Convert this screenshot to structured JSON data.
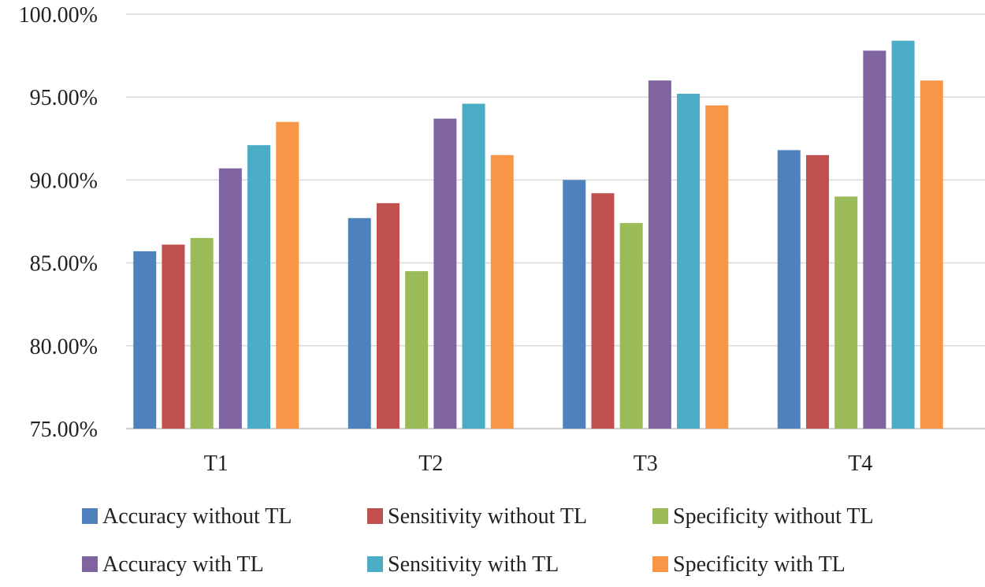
{
  "chart_data": {
    "type": "bar",
    "title": "",
    "xlabel": "",
    "ylabel": "",
    "categories": [
      "T1",
      "T2",
      "T3",
      "T4"
    ],
    "ylim": [
      0.75,
      1.0
    ],
    "ytick_step": 0.05,
    "ytick_format": "percent_2dp",
    "grid": true,
    "legend_position": "bottom",
    "legend_rows": [
      [
        "Accuracy without TL",
        "Sensitivity without TL",
        "Specificity without TL"
      ],
      [
        "Accuracy with TL",
        "Sensitivity with TL",
        "Specificity with TL"
      ]
    ],
    "series": [
      {
        "name": "Accuracy without TL",
        "color": "#4f81bd",
        "values": [
          0.857,
          0.877,
          0.9,
          0.918
        ]
      },
      {
        "name": "Sensitivity without TL",
        "color": "#c0504d",
        "values": [
          0.861,
          0.886,
          0.892,
          0.915
        ]
      },
      {
        "name": "Specificity without TL",
        "color": "#9bbb59",
        "values": [
          0.865,
          0.845,
          0.874,
          0.89
        ]
      },
      {
        "name": "Accuracy with TL",
        "color": "#8064a2",
        "values": [
          0.907,
          0.937,
          0.96,
          0.978
        ]
      },
      {
        "name": "Sensitivity with TL",
        "color": "#4bacc6",
        "values": [
          0.921,
          0.946,
          0.952,
          0.984
        ]
      },
      {
        "name": "Specificity with TL",
        "color": "#f79646",
        "values": [
          0.935,
          0.915,
          0.945,
          0.96
        ]
      }
    ]
  }
}
